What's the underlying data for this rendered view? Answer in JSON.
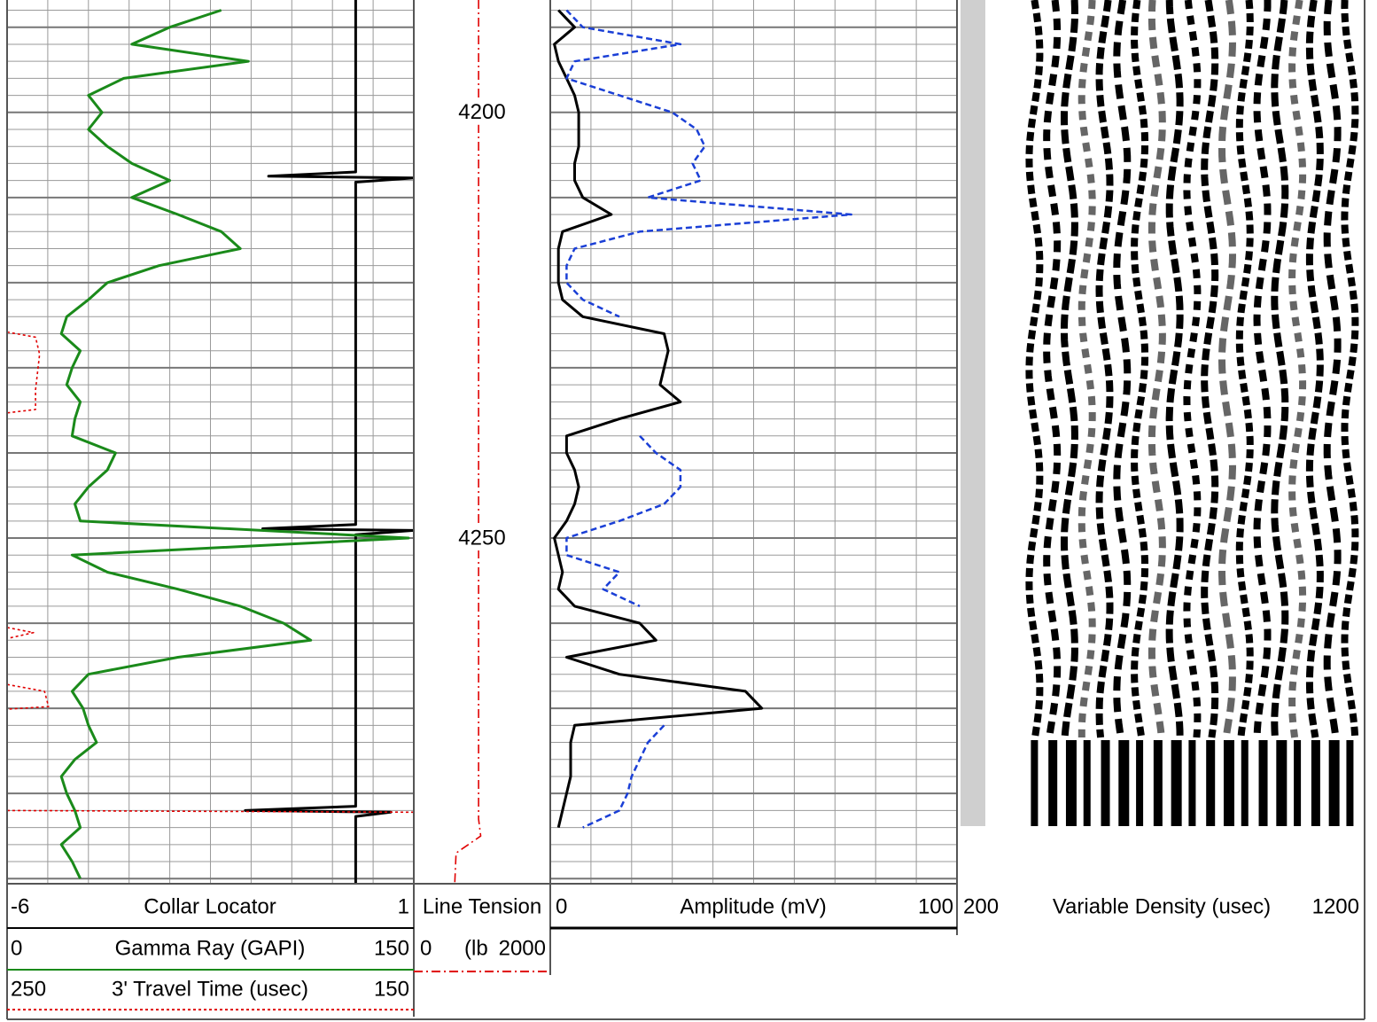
{
  "depth": {
    "ylim": [
      4186.8,
      4290.6
    ],
    "ticks": [
      4200,
      4250
    ],
    "minor_step": 2,
    "major_step": 10,
    "x_divisions": 10
  },
  "depth_samples": [
    4188,
    4190,
    4192,
    4194,
    4196,
    4198,
    4200,
    4202,
    4204,
    4206,
    4208,
    4210,
    4212,
    4214,
    4216,
    4218,
    4220,
    4222,
    4224,
    4226,
    4228,
    4230,
    4232,
    4234,
    4236,
    4238,
    4240,
    4242,
    4244,
    4246,
    4248,
    4250,
    4252,
    4254,
    4256,
    4258,
    4260,
    4262,
    4264,
    4266,
    4268,
    4270,
    4272,
    4274,
    4276,
    4278,
    4280,
    4282,
    4284,
    4286,
    4288,
    4290
  ],
  "curves": [
    {
      "name": "Collar Locator",
      "xlim": [
        -6,
        1
      ],
      "color": "#000000",
      "dash": "solid",
      "depth": [
        4186.8,
        4207.0,
        4207.5,
        4207.7,
        4208.2,
        4248.4,
        4248.9,
        4249.1,
        4249.6,
        4281.5,
        4282.0,
        4282.2,
        4282.7,
        4290.6
      ],
      "values": [
        0,
        0,
        -1.5,
        1,
        0,
        0,
        -1.6,
        1,
        0,
        0,
        -1.9,
        0.6,
        0,
        0
      ]
    },
    {
      "name": "Gamma Ray (GAPI)",
      "xlim": [
        0,
        150
      ],
      "color": "#1a8a1a",
      "dash": "solid",
      "values": [
        79,
        60,
        46,
        89,
        43,
        30,
        35,
        30,
        37,
        46,
        60,
        46,
        63,
        79,
        86,
        56,
        37,
        30,
        22,
        20,
        27,
        24,
        22,
        27,
        25,
        24,
        40,
        37,
        30,
        25,
        27,
        148,
        24,
        37,
        63,
        86,
        102,
        112,
        63,
        30,
        24,
        28,
        30,
        33,
        25,
        20,
        22,
        25,
        27,
        20,
        24,
        27
      ]
    },
    {
      "name": "3' Travel Time (usec)",
      "xlim": [
        250,
        150
      ],
      "color": "#e00000",
      "dash": "dotted",
      "depth": [
        4225.8,
        4226.4,
        4228.4,
        4232.6,
        4234.9,
        4235.3,
        null,
        4260.5,
        4261.1,
        4261.8,
        null,
        4267.2,
        4268.0,
        4269.8,
        4270.1,
        null,
        4282.0,
        4282.2
      ],
      "values": [
        250,
        243,
        242,
        243,
        243,
        250,
        null,
        250,
        243.5,
        250,
        null,
        250,
        240.8,
        239.8,
        250,
        null,
        250,
        150
      ]
    },
    {
      "name": "Line Tension",
      "unit": "(lb",
      "xlim": [
        0,
        2000
      ],
      "color": "#e00000",
      "dash": "dashdot",
      "depth": [
        4186.8,
        4283,
        4285,
        4287,
        4290.6
      ],
      "values": [
        950,
        950,
        980,
        620,
        600
      ]
    },
    {
      "name": "Amplitude (mV)",
      "xlim": [
        0,
        100
      ],
      "color": "#000000",
      "dash": "solid",
      "values": [
        2,
        6,
        1,
        2,
        4,
        6,
        7,
        7,
        7,
        6,
        6,
        8,
        15,
        3,
        2,
        2,
        2,
        3,
        8,
        28,
        29,
        28,
        27,
        32,
        17,
        4,
        4,
        6,
        7,
        6,
        4,
        1,
        2,
        3,
        2,
        6,
        22,
        26,
        4,
        17,
        48,
        52,
        6,
        5,
        5,
        5,
        4,
        3,
        2,
        null,
        null,
        null
      ]
    },
    {
      "xlim": [
        0,
        100
      ],
      "color": "#1a3fd6",
      "dash": "dashed",
      "values": [
        4,
        8,
        32,
        6,
        4,
        17,
        30,
        36,
        38,
        35,
        37,
        24,
        74,
        22,
        6,
        4,
        4,
        8,
        17,
        null,
        null,
        null,
        null,
        null,
        null,
        22,
        26,
        32,
        32,
        28,
        17,
        4,
        4,
        17,
        13,
        22,
        null,
        null,
        17,
        null,
        null,
        null,
        28,
        24,
        22,
        20,
        19,
        17,
        8,
        null,
        null,
        null
      ]
    },
    {
      "name": "Variable Density (usec)",
      "xlim": [
        200,
        1200
      ]
    }
  ]
}
